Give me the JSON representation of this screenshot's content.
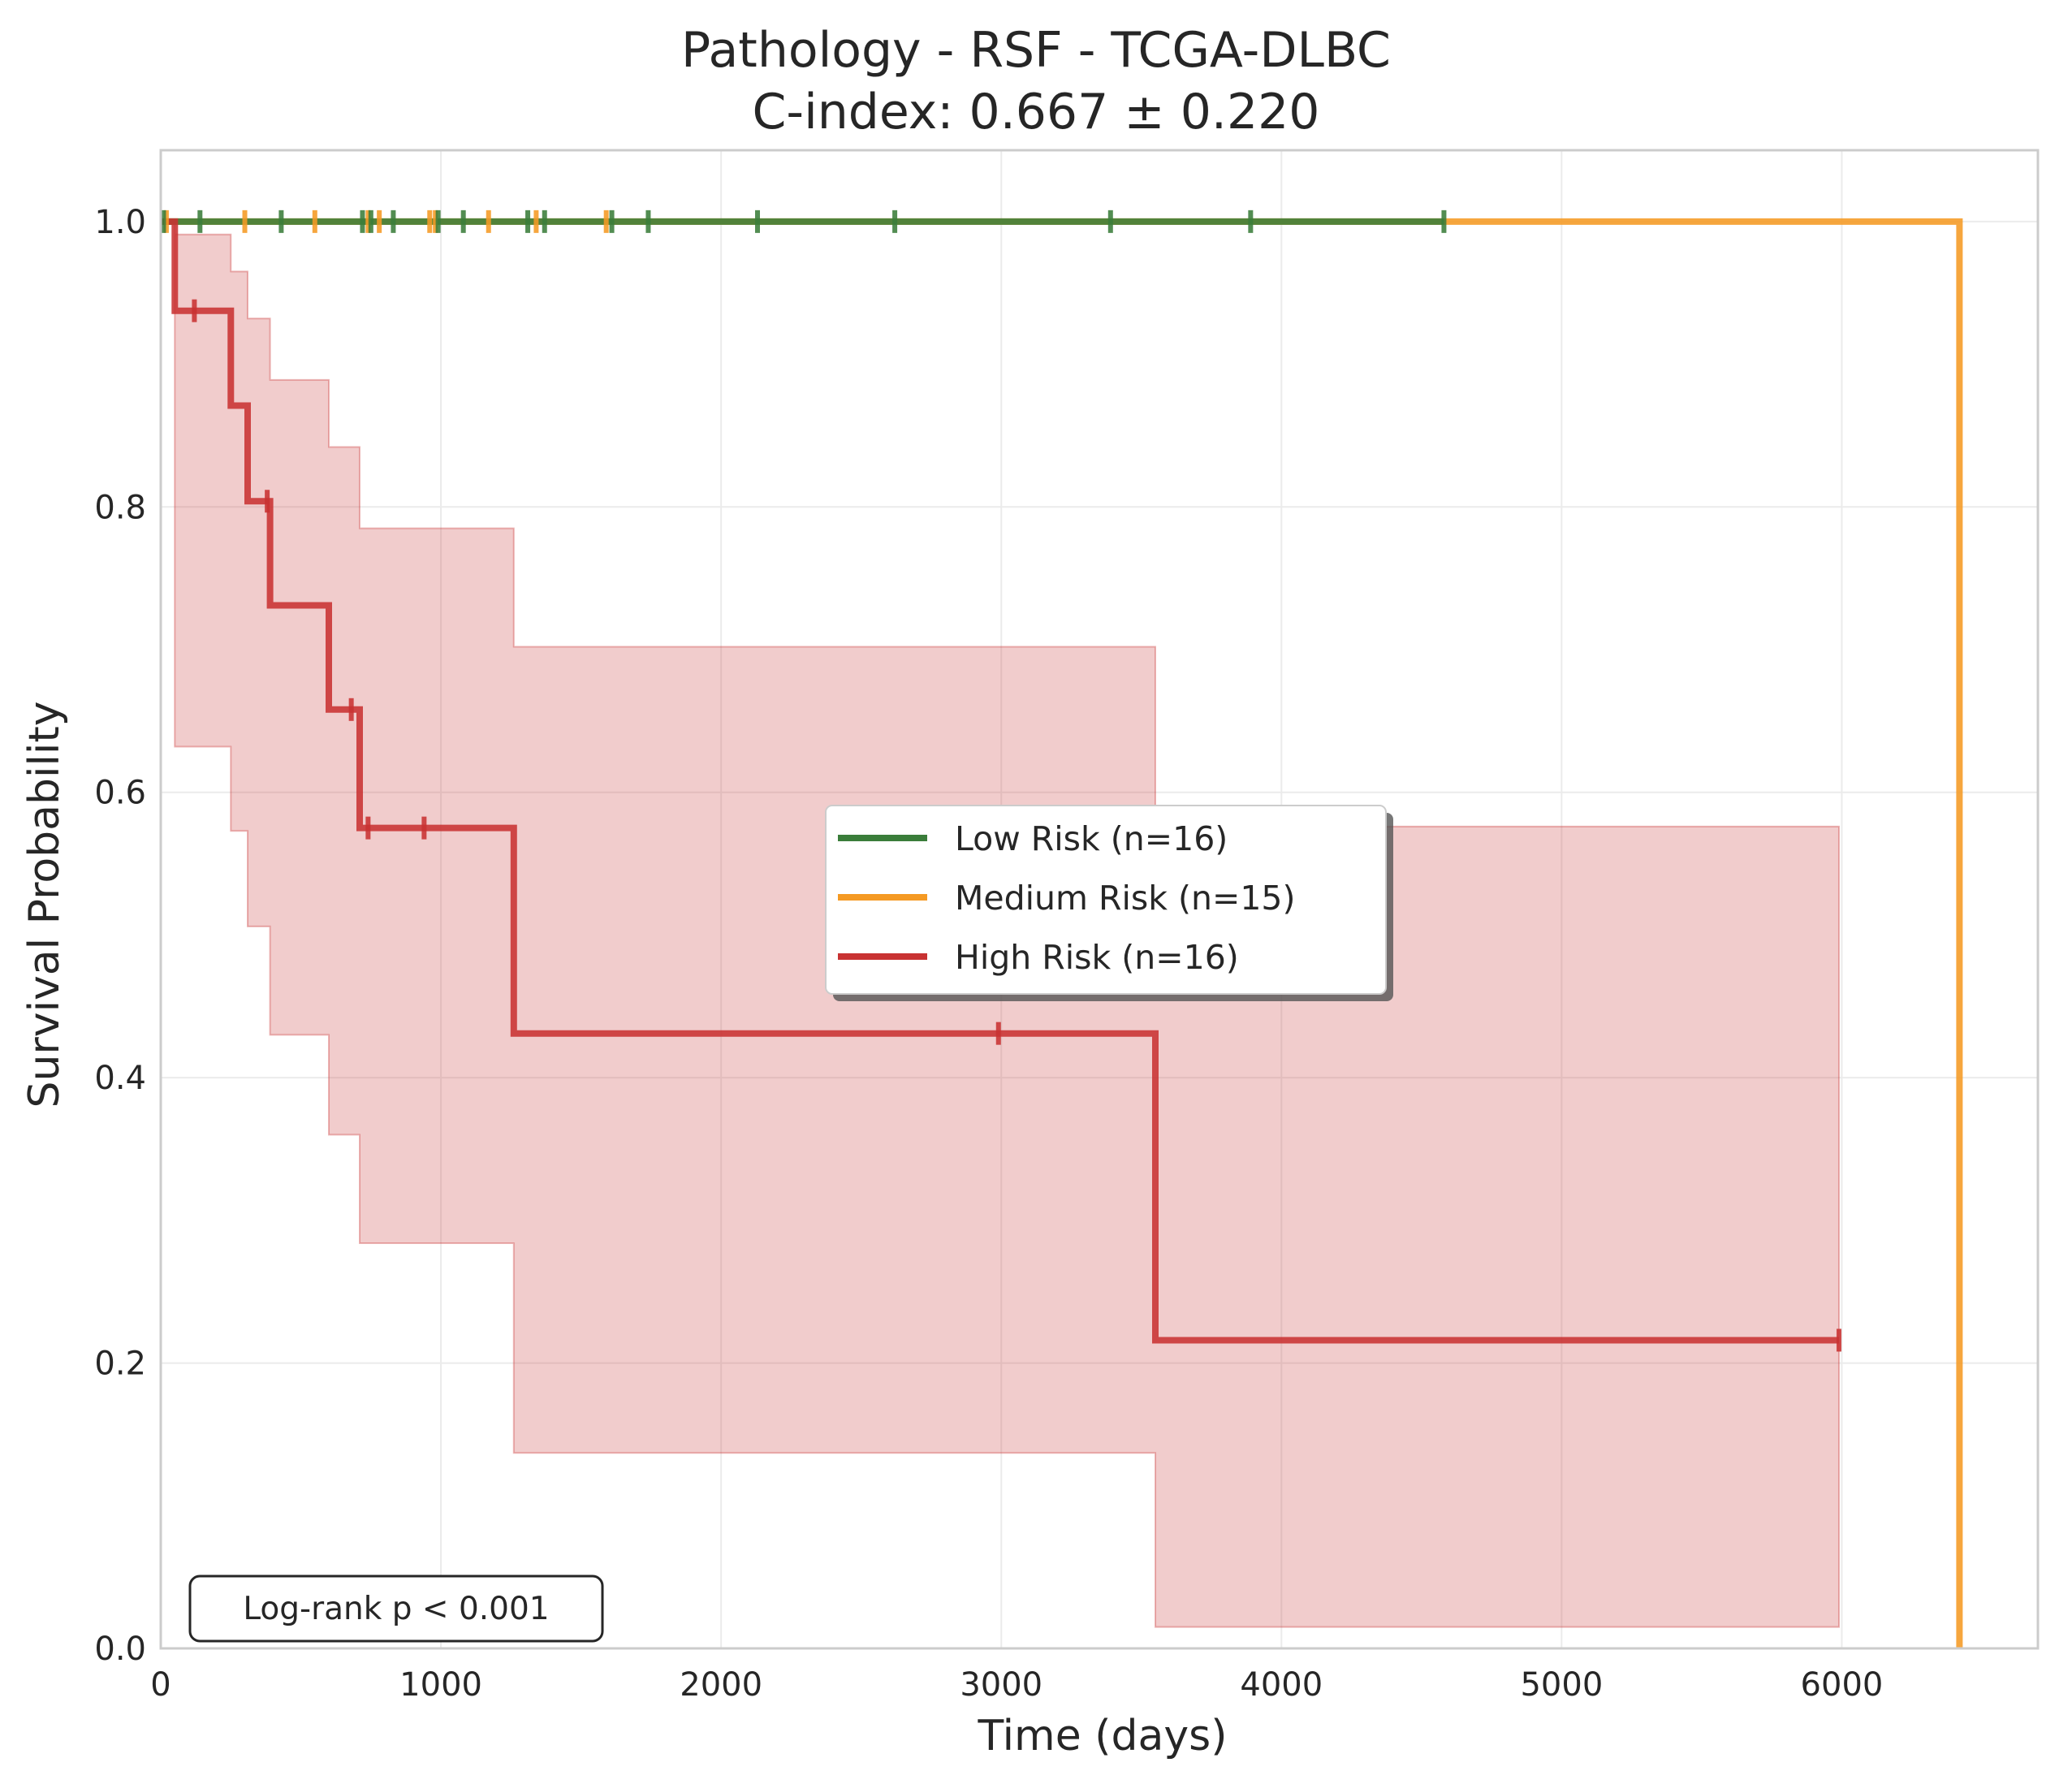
{
  "chart_data": {
    "type": "line",
    "title": "Pathology - RSF - TCGA-DLBC",
    "subtitle": "C-index: 0.667 ± 0.220",
    "xlabel": "Time (days)",
    "ylabel": "Survival Probability",
    "xlim": [
      0,
      6700
    ],
    "ylim": [
      0,
      1.05
    ],
    "xticks": [
      0,
      1000,
      2000,
      3000,
      4000,
      5000,
      6000
    ],
    "xtick_labels": [
      "0",
      "1000",
      "2000",
      "3000",
      "4000",
      "5000",
      "6000"
    ],
    "yticks": [
      0,
      0.2,
      0.4,
      0.6,
      0.8,
      1.0
    ],
    "ytick_labels": [
      "0.0",
      "0.2",
      "0.4",
      "0.6",
      "0.8",
      "1.0"
    ],
    "grid": true,
    "legend_position": "center-right",
    "annotation": "Log-rank p < 0.001",
    "series": [
      {
        "name": "Low Risk (n=16)",
        "color": "#3a7d3a",
        "step_x": [
          0,
          4580
        ],
        "step_y": [
          1.0,
          1.0
        ],
        "censor_x": [
          10,
          140,
          430,
          720,
          750,
          830,
          990,
          1080,
          1310,
          1370,
          1610,
          1740,
          2130,
          2620,
          3390,
          3890,
          4580
        ],
        "censor_y": [
          1,
          1,
          1,
          1,
          1,
          1,
          1,
          1,
          1,
          1,
          1,
          1,
          1,
          1,
          1,
          1,
          1
        ]
      },
      {
        "name": "Medium Risk (n=15)",
        "color": "#f59a23",
        "step_x": [
          0,
          6420,
          6420
        ],
        "step_y": [
          1.0,
          1.0,
          0.0
        ],
        "censor_x": [
          20,
          300,
          550,
          740,
          780,
          960,
          980,
          1170,
          1340,
          1590
        ],
        "censor_y": [
          1,
          1,
          1,
          1,
          1,
          1,
          1,
          1,
          1,
          1
        ]
      },
      {
        "name": "High Risk (n=16)",
        "color": "#c83232",
        "step_x": [
          0,
          50,
          250,
          310,
          390,
          600,
          710,
          1260,
          3550,
          5990
        ],
        "step_y": [
          1.0,
          0.9375,
          0.871,
          0.804,
          0.731,
          0.658,
          0.575,
          0.431,
          0.216,
          0.216
        ],
        "ci_lower": [
          1.0,
          0.632,
          0.573,
          0.506,
          0.43,
          0.36,
          0.284,
          0.137,
          0.015,
          0.015
        ],
        "ci_upper": [
          1.0,
          0.991,
          0.965,
          0.932,
          0.889,
          0.842,
          0.785,
          0.702,
          0.576,
          0.576
        ],
        "censor_x": [
          120,
          380,
          680,
          740,
          940,
          2990,
          5990
        ],
        "censor_y": [
          0.9375,
          0.804,
          0.658,
          0.575,
          0.575,
          0.431,
          0.216
        ]
      }
    ]
  }
}
